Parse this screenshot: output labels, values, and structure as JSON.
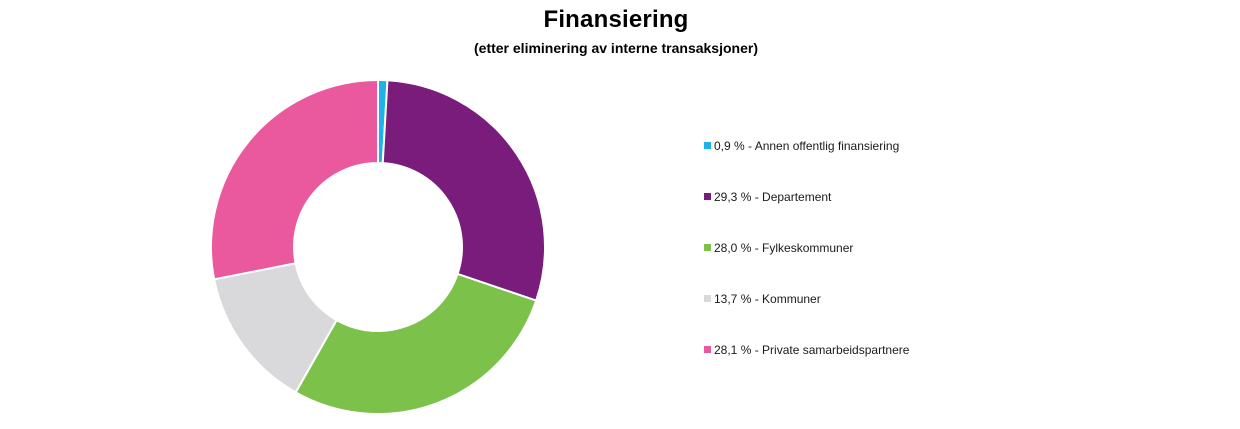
{
  "chart_data": {
    "type": "pie",
    "title": "Finansiering",
    "subtitle": "(etter eliminering av interne transaksjoner)",
    "legend_position": "right",
    "slices": [
      {
        "label": "0,9 % - Annen offentlig finansiering",
        "value": 0.9,
        "color": "#1fb2e6"
      },
      {
        "label": "29,3 % - Departement",
        "value": 29.3,
        "color": "#7a1c7c"
      },
      {
        "label": "28,0 % - Fylkeskommuner",
        "value": 28.0,
        "color": "#7bc14a"
      },
      {
        "label": "13,7 % - Kommuner",
        "value": 13.7,
        "color": "#d9d9db"
      },
      {
        "label": "28,1 % - Private samarbeidspartnere",
        "value": 28.1,
        "color": "#ea589e"
      }
    ]
  }
}
